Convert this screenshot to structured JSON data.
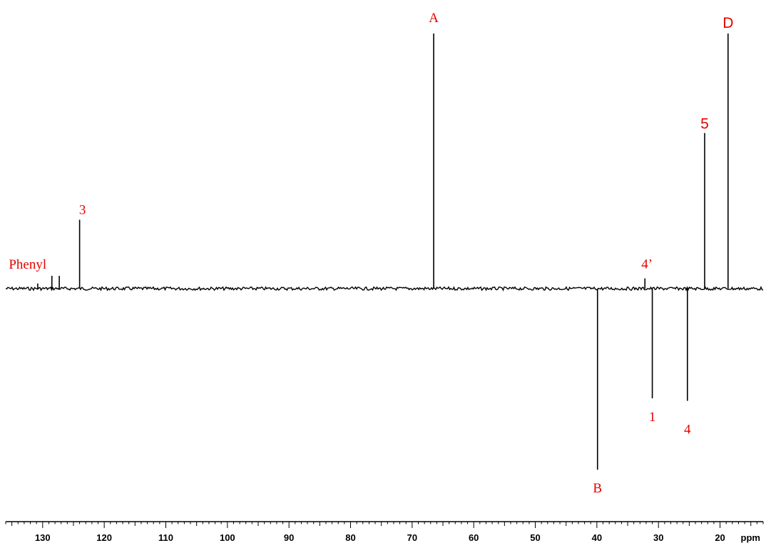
{
  "chart_data": {
    "type": "line",
    "title": "",
    "xlabel": "ppm",
    "ylabel": "",
    "x_direction": "descending",
    "xlim": [
      136,
      13
    ],
    "x_ticks": [
      130,
      120,
      110,
      100,
      90,
      80,
      70,
      60,
      50,
      40,
      30,
      20
    ],
    "grid": false,
    "peaks": [
      {
        "label": "A",
        "ppm": 66.5,
        "intensity": 1.0
      },
      {
        "label": "D",
        "ppm": 18.7,
        "intensity": 1.0
      },
      {
        "label": "5",
        "ppm": 22.5,
        "intensity": 0.61
      },
      {
        "label": "3",
        "ppm": 124.0,
        "intensity": 0.27
      },
      {
        "label": "Phenyl",
        "ppm": 128.5,
        "intensity": 0.05
      },
      {
        "label": "",
        "ppm": 127.3,
        "intensity": 0.05
      },
      {
        "label": "",
        "ppm": 130.8,
        "intensity": 0.02
      },
      {
        "label": "4’",
        "ppm": 32.2,
        "intensity": 0.04
      },
      {
        "label": "B",
        "ppm": 39.9,
        "intensity": -0.71
      },
      {
        "label": "1",
        "ppm": 31.0,
        "intensity": -0.43
      },
      {
        "label": "4",
        "ppm": 25.3,
        "intensity": -0.44
      }
    ]
  },
  "colors": {
    "spectrum": "#000000",
    "labels": "#e60000"
  }
}
